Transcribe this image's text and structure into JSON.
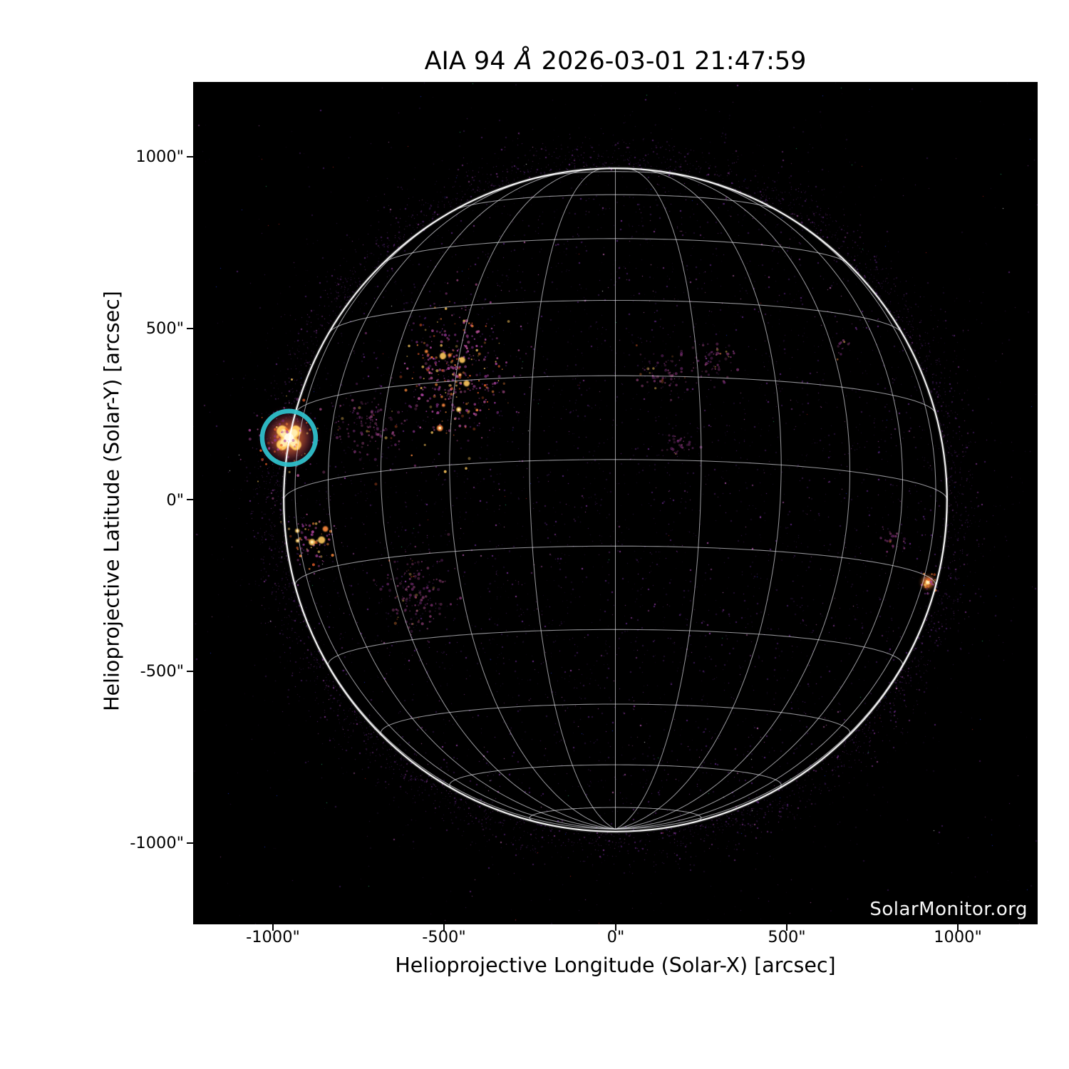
{
  "figure": {
    "title": "AIA 94 Å 2026-03-01 21:47:59",
    "title_parts": {
      "pre": "AIA 94 ",
      "angstrom": "Å",
      "post": " 2026-03-01 21:47:59"
    }
  },
  "axes": {
    "x": {
      "label": "Helioprojective Longitude (Solar-X) [arcsec]",
      "ticks": [
        {
          "value": -1000,
          "label": "-1000\""
        },
        {
          "value": -500,
          "label": "-500\""
        },
        {
          "value": 0,
          "label": "0\""
        },
        {
          "value": 500,
          "label": "500\""
        },
        {
          "value": 1000,
          "label": "1000\""
        }
      ]
    },
    "y": {
      "label": "Helioprojective Latitude (Solar-Y) [arcsec]",
      "ticks": [
        {
          "value": 1000,
          "label": "1000\""
        },
        {
          "value": 500,
          "label": "500\""
        },
        {
          "value": 0,
          "label": "0\""
        },
        {
          "value": -500,
          "label": "-500\""
        },
        {
          "value": -1000,
          "label": "-1000\""
        }
      ]
    }
  },
  "plot": {
    "watermark": "SolarMonitor.org",
    "background": "#000000"
  },
  "chart_data": {
    "type": "heatmap",
    "title": "AIA 94 Å 2026-03-01 21:47:59",
    "instrument": "AIA",
    "wavelength_angstrom": 94,
    "datetime": "2026-03-01 21:47:59",
    "xlabel": "Helioprojective Longitude (Solar-X) [arcsec]",
    "ylabel": "Helioprojective Latitude (Solar-Y) [arcsec]",
    "xlim": [
      -1232,
      1231
    ],
    "ylim": [
      -1238,
      1219
    ],
    "x_ticks_arcsec": [
      -1000,
      -500,
      0,
      500,
      1000
    ],
    "y_ticks_arcsec": [
      1000,
      500,
      0,
      -500,
      -1000
    ],
    "grid_on": true,
    "solar_disk": {
      "center_arcsec": [
        0,
        0
      ],
      "radius_arcsec": 967,
      "grid_spacing_deg": 15,
      "b0_tilt_deg": -7,
      "grid_color": "#eeeef4",
      "limb_color": "#ffffff"
    },
    "annotation_circle": {
      "x_arcsec": -952,
      "y_arcsec": 181,
      "radius_arcsec": 78,
      "color": "#2fbfca",
      "stroke_width_px": 6.5
    },
    "features": [
      {
        "name": "circled-flare",
        "type": "flare-x",
        "x_arcsec": -952,
        "y_arcsec": 181,
        "size_arcsec": 110
      },
      {
        "name": "ar-complex-northeast",
        "type": "cluster",
        "x_arcsec": -468,
        "y_arcsec": 358,
        "w_arcsec": 175,
        "h_arcsec": 235,
        "knots": 9
      },
      {
        "name": "ar-east-limb-south",
        "type": "cluster",
        "x_arcsec": -885,
        "y_arcsec": -112,
        "w_arcsec": 75,
        "h_arcsec": 95,
        "knots": 5
      },
      {
        "name": "west-limb-bright-point",
        "type": "spot",
        "x_arcsec": 911,
        "y_arcsec": -240
      },
      {
        "name": "faint-plage-center-north",
        "type": "patch",
        "x_arcsec": 140,
        "y_arcsec": 365,
        "w_arcsec": 120,
        "h_arcsec": 100
      },
      {
        "name": "faint-plage-northwest",
        "type": "patch",
        "x_arcsec": 300,
        "y_arcsec": 405,
        "w_arcsec": 110,
        "h_arcsec": 90
      },
      {
        "name": "faint-point-northwest",
        "type": "patch",
        "x_arcsec": 665,
        "y_arcsec": 447,
        "w_arcsec": 50,
        "h_arcsec": 40
      },
      {
        "name": "faint-scatter-southeast",
        "type": "patch",
        "x_arcsec": -580,
        "y_arcsec": -280,
        "w_arcsec": 150,
        "h_arcsec": 170
      },
      {
        "name": "faint-scatter-east",
        "type": "patch",
        "x_arcsec": -720,
        "y_arcsec": 215,
        "w_arcsec": 160,
        "h_arcsec": 130
      },
      {
        "name": "faint-patch-west",
        "type": "patch",
        "x_arcsec": 810,
        "y_arcsec": -120,
        "w_arcsec": 70,
        "h_arcsec": 60
      },
      {
        "name": "faint-patch-center",
        "type": "patch",
        "x_arcsec": 190,
        "y_arcsec": 158,
        "w_arcsec": 80,
        "h_arcsec": 70
      }
    ],
    "colors": {
      "background": "#000000",
      "speckle_palette": [
        "#1c0d29",
        "#2e1344",
        "#3f1a5c",
        "#56227a",
        "#6f2b90",
        "#8d3a9e",
        "#ab4fa8",
        "#cf6fc0"
      ],
      "bright_palette": [
        "#fffbe8",
        "#ffedb0",
        "#ffc95e",
        "#ff8a3c",
        "#e85c28"
      ],
      "dust_magenta": [
        "#8d3390",
        "#b0449f",
        "#c2559f"
      ],
      "annotation": "#2fbfca"
    }
  }
}
